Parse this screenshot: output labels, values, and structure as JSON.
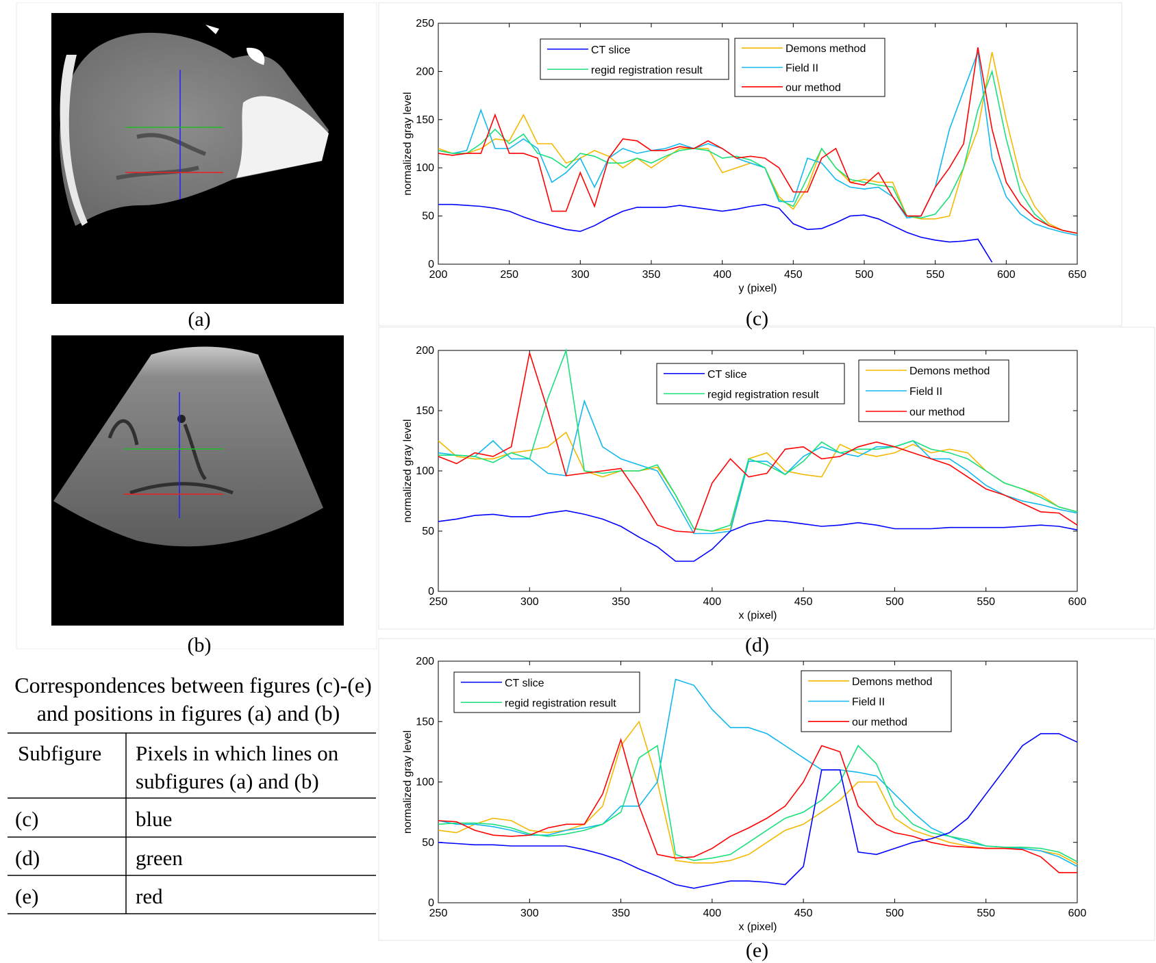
{
  "figures": [
    {
      "caption": "(a)"
    },
    {
      "caption": "(b)"
    }
  ],
  "table": {
    "title": [
      "Correspondences between figures (c)-(e)",
      "and positions in figures (a) and (b)"
    ],
    "header": [
      "Subfigure",
      [
        "Pixels in which lines on",
        "subfigures (a) and (b)"
      ]
    ],
    "rows": [
      {
        "subfigure": "(c)",
        "pixels": "blue",
        "color": "#0000ff"
      },
      {
        "subfigure": "(d)",
        "pixels": "green",
        "color": "#22cc22"
      },
      {
        "subfigure": "(e)",
        "pixels": "red",
        "color": "#ff0000"
      }
    ]
  },
  "chart_data": [
    {
      "type": "line",
      "caption": "(c)",
      "xlabel": "y (pixel)",
      "ylabel": "normalized gray level",
      "x": [
        200,
        210,
        220,
        230,
        240,
        250,
        260,
        270,
        280,
        290,
        300,
        310,
        320,
        330,
        340,
        350,
        360,
        370,
        380,
        390,
        400,
        410,
        420,
        430,
        440,
        450,
        460,
        470,
        480,
        490,
        500,
        510,
        520,
        530,
        540,
        550,
        560,
        570,
        580,
        590,
        600,
        610,
        620,
        630,
        640,
        650
      ],
      "xlim": [
        200,
        650
      ],
      "xticks": [
        200,
        250,
        300,
        350,
        400,
        450,
        500,
        550,
        600,
        650
      ],
      "ylim": [
        0,
        250
      ],
      "yticks": [
        0,
        50,
        100,
        150,
        200,
        250
      ],
      "series": [
        {
          "name": "CT slice",
          "color": "#0000ff",
          "values": [
            62,
            62,
            61,
            60,
            58,
            55,
            49,
            44,
            40,
            36,
            34,
            40,
            48,
            55,
            59,
            59,
            59,
            61,
            59,
            57,
            55,
            57,
            60,
            62,
            58,
            42,
            36,
            37,
            43,
            50,
            51,
            47,
            40,
            33,
            28,
            25,
            23,
            24,
            26,
            2,
            null,
            null,
            null,
            null,
            null,
            null
          ]
        },
        {
          "name": "regid registration result",
          "color": "#19e07c",
          "values": [
            118,
            115,
            115,
            125,
            140,
            125,
            135,
            115,
            110,
            100,
            115,
            112,
            105,
            105,
            110,
            105,
            112,
            118,
            120,
            118,
            110,
            112,
            108,
            100,
            67,
            60,
            90,
            120,
            100,
            88,
            85,
            82,
            80,
            50,
            48,
            52,
            70,
            100,
            160,
            200,
            130,
            75,
            52,
            40,
            35,
            32
          ]
        },
        {
          "name": "Demons method",
          "color": "#f5b800",
          "values": [
            120,
            115,
            115,
            120,
            130,
            128,
            155,
            125,
            125,
            105,
            110,
            118,
            112,
            100,
            110,
            100,
            110,
            120,
            120,
            120,
            95,
            100,
            105,
            100,
            70,
            57,
            80,
            120,
            100,
            85,
            88,
            85,
            85,
            50,
            47,
            47,
            50,
            100,
            140,
            220,
            150,
            90,
            60,
            42,
            35,
            32
          ]
        },
        {
          "name": "Field II",
          "color": "#11b8f0",
          "values": [
            118,
            115,
            118,
            160,
            120,
            120,
            130,
            120,
            85,
            95,
            110,
            80,
            110,
            120,
            115,
            118,
            120,
            125,
            120,
            125,
            120,
            110,
            105,
            100,
            65,
            65,
            110,
            105,
            88,
            80,
            78,
            80,
            70,
            48,
            50,
            80,
            140,
            180,
            220,
            110,
            70,
            52,
            42,
            37,
            33,
            30
          ]
        },
        {
          "name": "our method",
          "color": "#ff0000",
          "values": [
            115,
            113,
            115,
            115,
            155,
            115,
            115,
            110,
            55,
            55,
            95,
            60,
            110,
            130,
            128,
            118,
            118,
            122,
            120,
            128,
            120,
            110,
            112,
            110,
            100,
            75,
            75,
            110,
            120,
            85,
            82,
            95,
            70,
            50,
            50,
            80,
            100,
            125,
            225,
            140,
            85,
            62,
            48,
            40,
            35,
            32
          ]
        }
      ]
    },
    {
      "type": "line",
      "caption": "(d)",
      "xlabel": "x (pixel)",
      "ylabel": "normalized gray level",
      "x": [
        250,
        260,
        270,
        280,
        290,
        300,
        310,
        320,
        330,
        340,
        350,
        360,
        370,
        380,
        390,
        400,
        410,
        420,
        430,
        440,
        450,
        460,
        470,
        480,
        490,
        500,
        510,
        520,
        530,
        540,
        550,
        560,
        570,
        580,
        590,
        600
      ],
      "xlim": [
        250,
        600
      ],
      "xticks": [
        250,
        300,
        350,
        400,
        450,
        500,
        550,
        600
      ],
      "ylim": [
        0,
        200
      ],
      "yticks": [
        0,
        50,
        100,
        150,
        200
      ],
      "series": [
        {
          "name": "CT slice",
          "color": "#0000ff",
          "values": [
            58,
            60,
            63,
            64,
            62,
            62,
            65,
            67,
            64,
            60,
            54,
            45,
            37,
            25,
            25,
            35,
            50,
            56,
            59,
            58,
            56,
            54,
            55,
            57,
            55,
            52,
            52,
            52,
            53,
            53,
            53,
            53,
            54,
            55,
            54,
            51
          ]
        },
        {
          "name": "regid registration result",
          "color": "#19e07c",
          "values": [
            113,
            113,
            112,
            107,
            115,
            110,
            160,
            200,
            100,
            98,
            100,
            100,
            105,
            80,
            52,
            50,
            55,
            110,
            105,
            97,
            108,
            124,
            115,
            118,
            118,
            120,
            125,
            118,
            115,
            110,
            100,
            90,
            85,
            78,
            70,
            66
          ]
        },
        {
          "name": "Demons method",
          "color": "#f5b800",
          "values": [
            125,
            112,
            110,
            110,
            115,
            117,
            120,
            132,
            100,
            95,
            100,
            100,
            103,
            80,
            52,
            50,
            52,
            110,
            115,
            100,
            97,
            95,
            122,
            115,
            112,
            115,
            122,
            115,
            118,
            115,
            100,
            90,
            85,
            80,
            70,
            66
          ]
        },
        {
          "name": "Field II",
          "color": "#11b8f0",
          "values": [
            115,
            113,
            112,
            125,
            110,
            110,
            98,
            96,
            158,
            120,
            110,
            105,
            100,
            75,
            48,
            48,
            50,
            108,
            108,
            97,
            112,
            120,
            115,
            112,
            120,
            120,
            125,
            110,
            110,
            100,
            88,
            80,
            75,
            72,
            68,
            65
          ]
        },
        {
          "name": "our method",
          "color": "#ff0000",
          "values": [
            112,
            106,
            115,
            112,
            120,
            198,
            150,
            96,
            98,
            100,
            102,
            80,
            55,
            50,
            49,
            90,
            110,
            95,
            98,
            118,
            120,
            110,
            112,
            120,
            124,
            120,
            115,
            110,
            105,
            95,
            85,
            80,
            73,
            66,
            65,
            55
          ]
        }
      ]
    },
    {
      "type": "line",
      "caption": "(e)",
      "xlabel": "x (pixel)",
      "ylabel": "normalized gray level",
      "x": [
        250,
        260,
        270,
        280,
        290,
        300,
        310,
        320,
        330,
        340,
        350,
        360,
        370,
        380,
        390,
        400,
        410,
        420,
        430,
        440,
        450,
        460,
        470,
        480,
        490,
        500,
        510,
        520,
        530,
        540,
        550,
        560,
        570,
        580,
        590,
        600
      ],
      "xlim": [
        250,
        600
      ],
      "xticks": [
        250,
        300,
        350,
        400,
        450,
        500,
        550,
        600
      ],
      "ylim": [
        0,
        200
      ],
      "yticks": [
        0,
        50,
        100,
        150,
        200
      ],
      "series": [
        {
          "name": "CT slice",
          "color": "#0000ff",
          "values": [
            50,
            49,
            48,
            48,
            47,
            47,
            47,
            47,
            44,
            40,
            35,
            28,
            22,
            15,
            12,
            15,
            18,
            18,
            17,
            15,
            30,
            110,
            110,
            42,
            40,
            45,
            50,
            53,
            58,
            70,
            90,
            110,
            130,
            140,
            140,
            133
          ]
        },
        {
          "name": "regid registration result",
          "color": "#19e07c",
          "values": [
            65,
            66,
            66,
            65,
            62,
            57,
            55,
            57,
            60,
            65,
            75,
            120,
            130,
            40,
            35,
            37,
            40,
            50,
            60,
            70,
            75,
            85,
            100,
            130,
            115,
            80,
            65,
            58,
            55,
            52,
            47,
            46,
            46,
            45,
            42,
            34
          ]
        },
        {
          "name": "Demons method",
          "color": "#f5b800",
          "values": [
            60,
            58,
            65,
            70,
            68,
            60,
            58,
            60,
            65,
            80,
            130,
            150,
            100,
            35,
            33,
            33,
            35,
            40,
            50,
            60,
            65,
            75,
            85,
            100,
            100,
            70,
            60,
            55,
            50,
            47,
            45,
            45,
            45,
            43,
            40,
            32
          ]
        },
        {
          "name": "Field II",
          "color": "#11b8f0",
          "values": [
            68,
            65,
            65,
            63,
            60,
            56,
            56,
            60,
            62,
            65,
            80,
            80,
            100,
            185,
            180,
            160,
            145,
            145,
            140,
            130,
            120,
            110,
            110,
            108,
            105,
            90,
            75,
            62,
            55,
            50,
            47,
            46,
            45,
            43,
            38,
            30
          ]
        },
        {
          "name": "our method",
          "color": "#ff0000",
          "values": [
            68,
            67,
            60,
            56,
            55,
            56,
            62,
            65,
            65,
            90,
            135,
            80,
            40,
            37,
            38,
            45,
            55,
            62,
            70,
            80,
            100,
            130,
            125,
            80,
            65,
            58,
            55,
            50,
            47,
            46,
            45,
            45,
            44,
            38,
            25,
            25
          ]
        }
      ]
    }
  ]
}
